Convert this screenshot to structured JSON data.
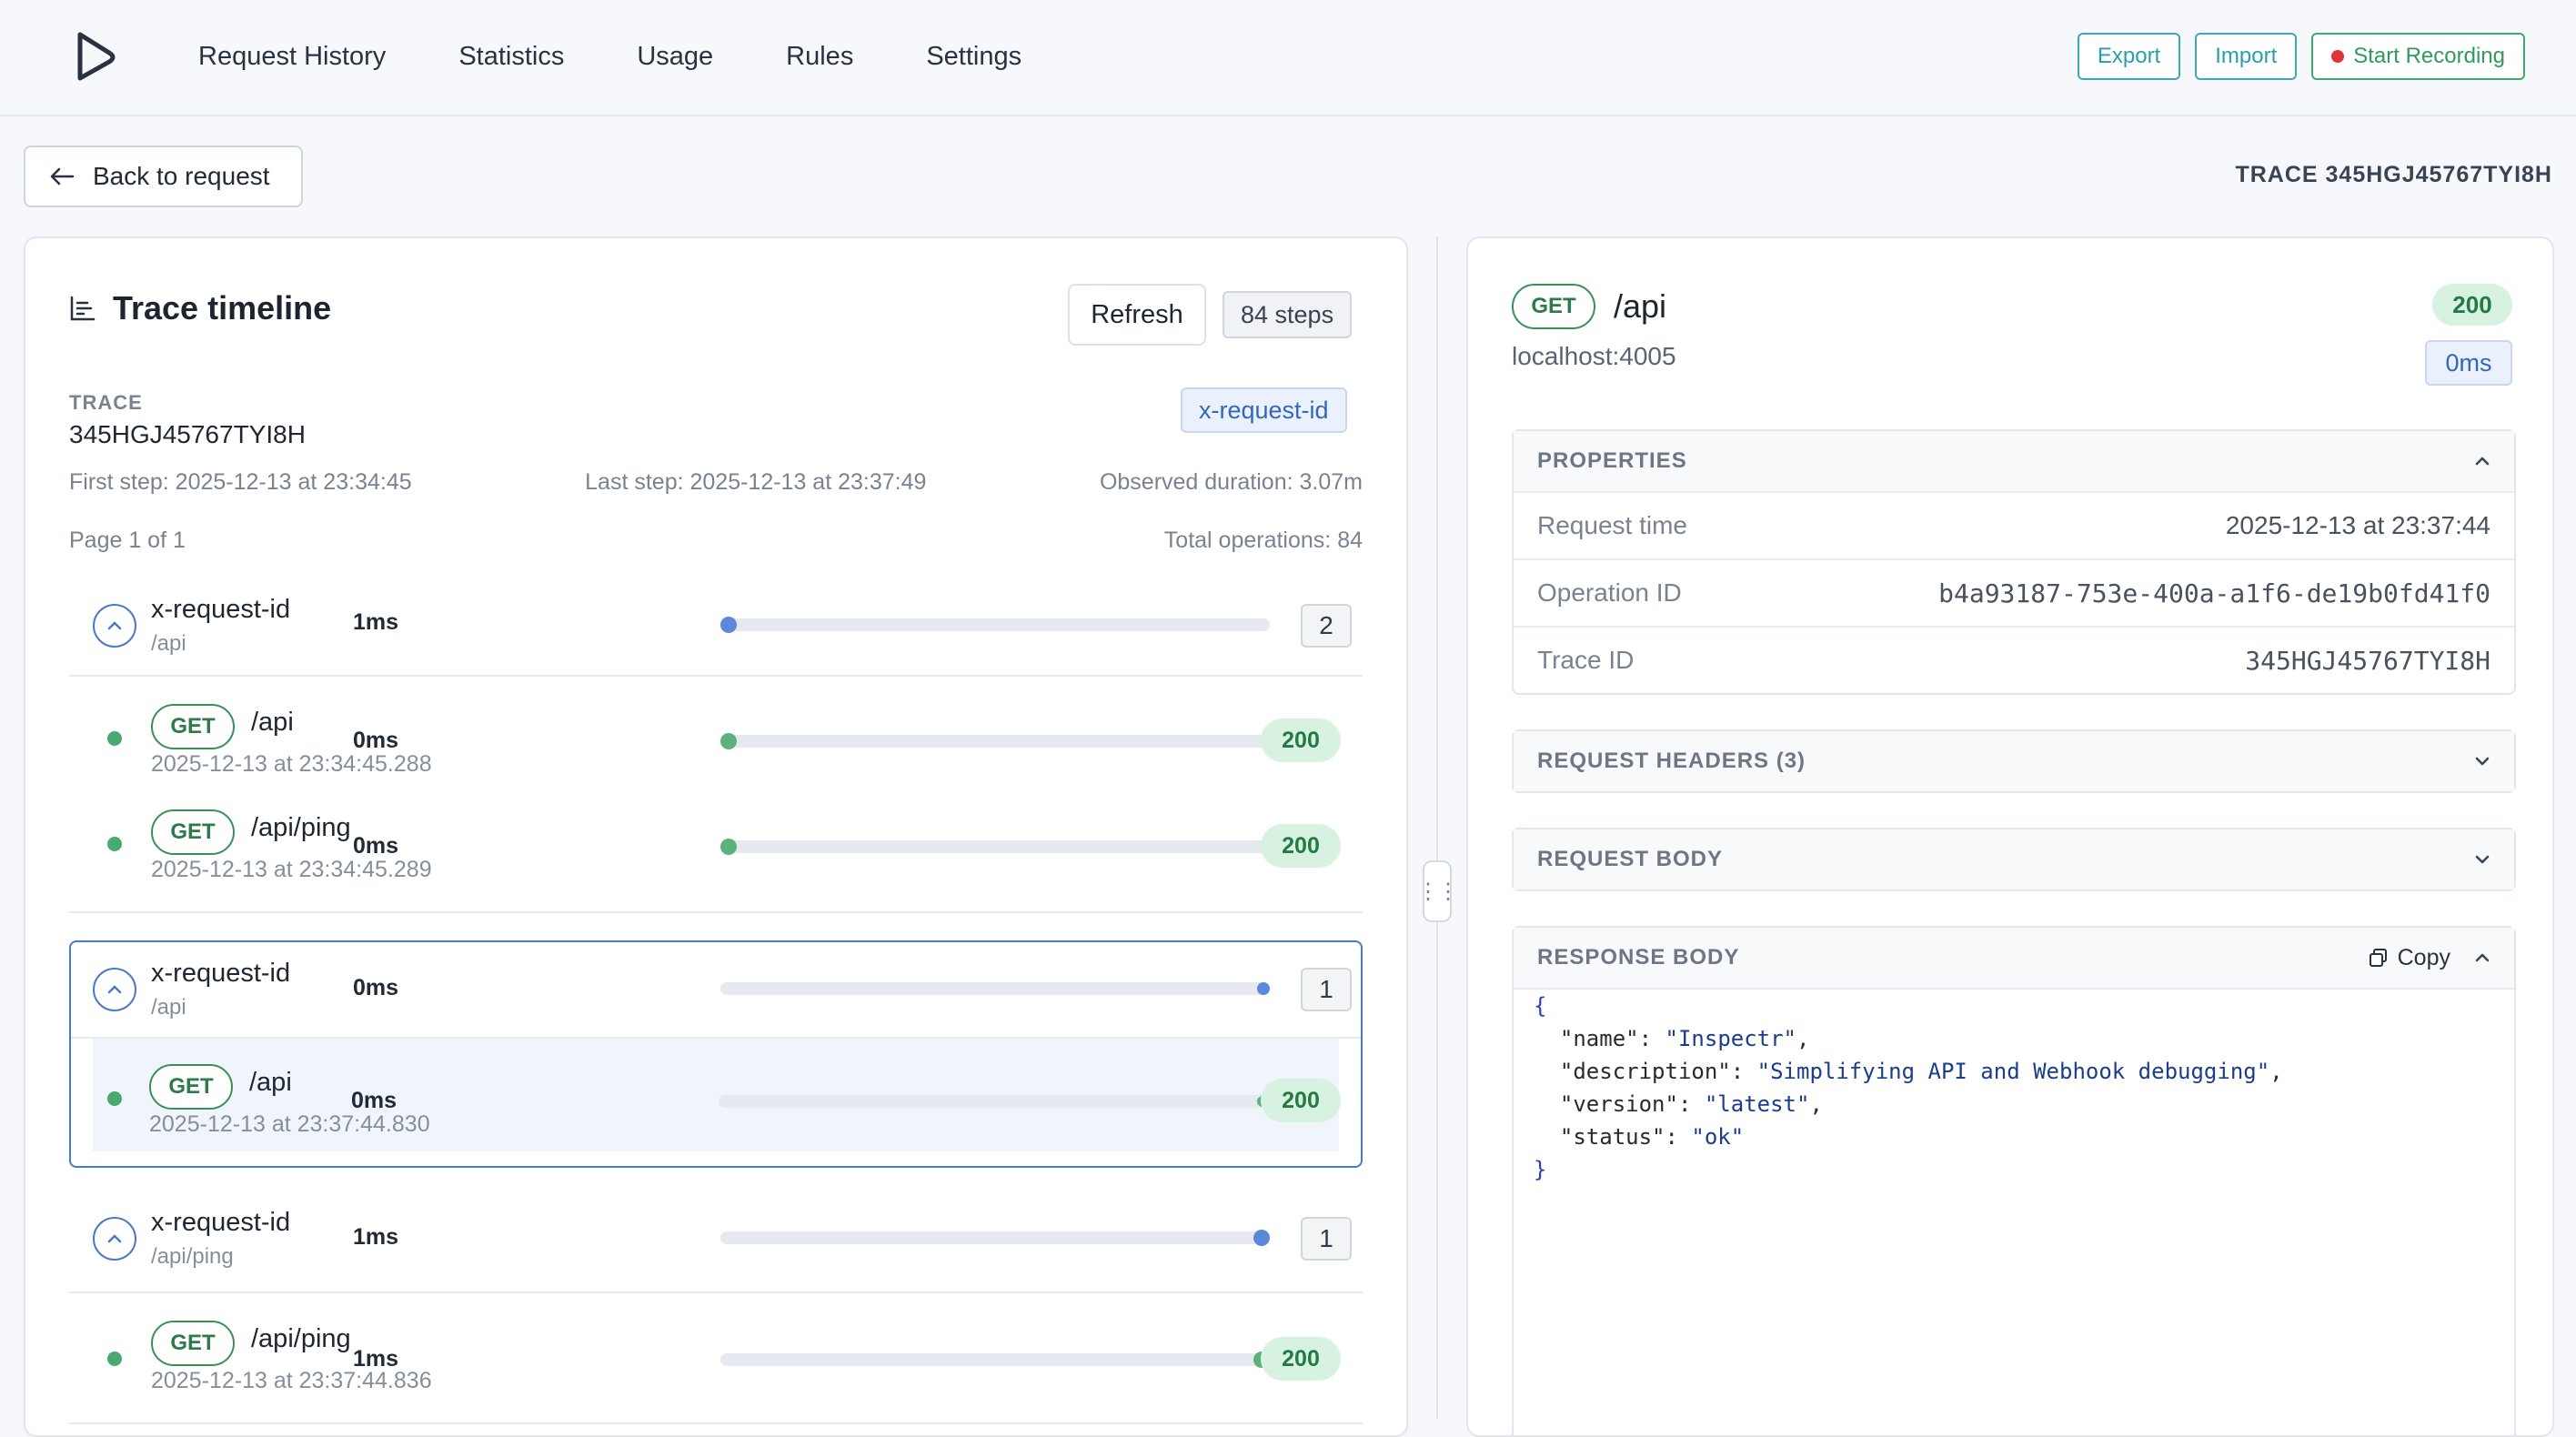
{
  "nav": {
    "items": [
      "Request History",
      "Statistics",
      "Usage",
      "Rules",
      "Settings"
    ],
    "export_label": "Export",
    "import_label": "Import",
    "record_label": "Start Recording"
  },
  "back_label": "Back to request",
  "trace_header": "TRACE 345HGJ45767TYI8H",
  "timeline": {
    "title": "Trace timeline",
    "refresh_label": "Refresh",
    "steps_badge": "84 steps",
    "trace_label": "TRACE",
    "trace_id": "345HGJ45767TYI8H",
    "header_badge": "x-request-id",
    "first_step": "First step: 2025-12-13 at 23:34:45",
    "last_step": "Last step: 2025-12-13 at 23:37:49",
    "observed": "Observed duration: 3.07m",
    "page": "Page 1 of 1",
    "total_ops": "Total operations: 84",
    "groups": [
      {
        "title": "x-request-id",
        "path": "/api",
        "duration": "1ms",
        "count": "2",
        "progress": 0.0,
        "ops": [
          {
            "method": "GET",
            "path": "/api",
            "time": "2025-12-13 at 23:34:45.288",
            "duration": "0ms",
            "status": "200",
            "progress": 0.0
          },
          {
            "method": "GET",
            "path": "/api/ping",
            "time": "2025-12-13 at 23:34:45.289",
            "duration": "0ms",
            "status": "200",
            "progress": 0.0
          }
        ]
      },
      {
        "title": "x-request-id",
        "path": "/api",
        "duration": "0ms",
        "count": "1",
        "progress": 1.0,
        "ops": [
          {
            "method": "GET",
            "path": "/api",
            "time": "2025-12-13 at 23:37:44.830",
            "duration": "0ms",
            "status": "200",
            "progress": 1.0
          }
        ]
      },
      {
        "title": "x-request-id",
        "path": "/api/ping",
        "duration": "1ms",
        "count": "1",
        "progress": 1.0,
        "ops": [
          {
            "method": "GET",
            "path": "/api/ping",
            "time": "2025-12-13 at 23:37:44.836",
            "duration": "1ms",
            "status": "200",
            "progress": 1.0
          }
        ]
      }
    ]
  },
  "detail": {
    "method": "GET",
    "path": "/api",
    "host": "localhost:4005",
    "status": "200",
    "duration": "0ms",
    "properties": {
      "title": "PROPERTIES",
      "rows": [
        {
          "key": "Request time",
          "value": "2025-12-13 at 23:37:44"
        },
        {
          "key": "Operation ID",
          "value": "b4a93187-753e-400a-a1f6-de19b0fd41f0"
        },
        {
          "key": "Trace ID",
          "value": "345HGJ45767TYI8H"
        }
      ]
    },
    "request_headers_title": "REQUEST HEADERS (3)",
    "request_body_title": "REQUEST BODY",
    "response_body": {
      "title": "RESPONSE BODY",
      "copy_label": "Copy",
      "json": {
        "name": "Inspectr",
        "description": "Simplifying API and Webhook debugging",
        "version": "latest",
        "status": "ok"
      }
    }
  },
  "colors": {
    "accent": "#4d79c4",
    "success": "#4aa872",
    "teal": "#3aa9b9"
  }
}
